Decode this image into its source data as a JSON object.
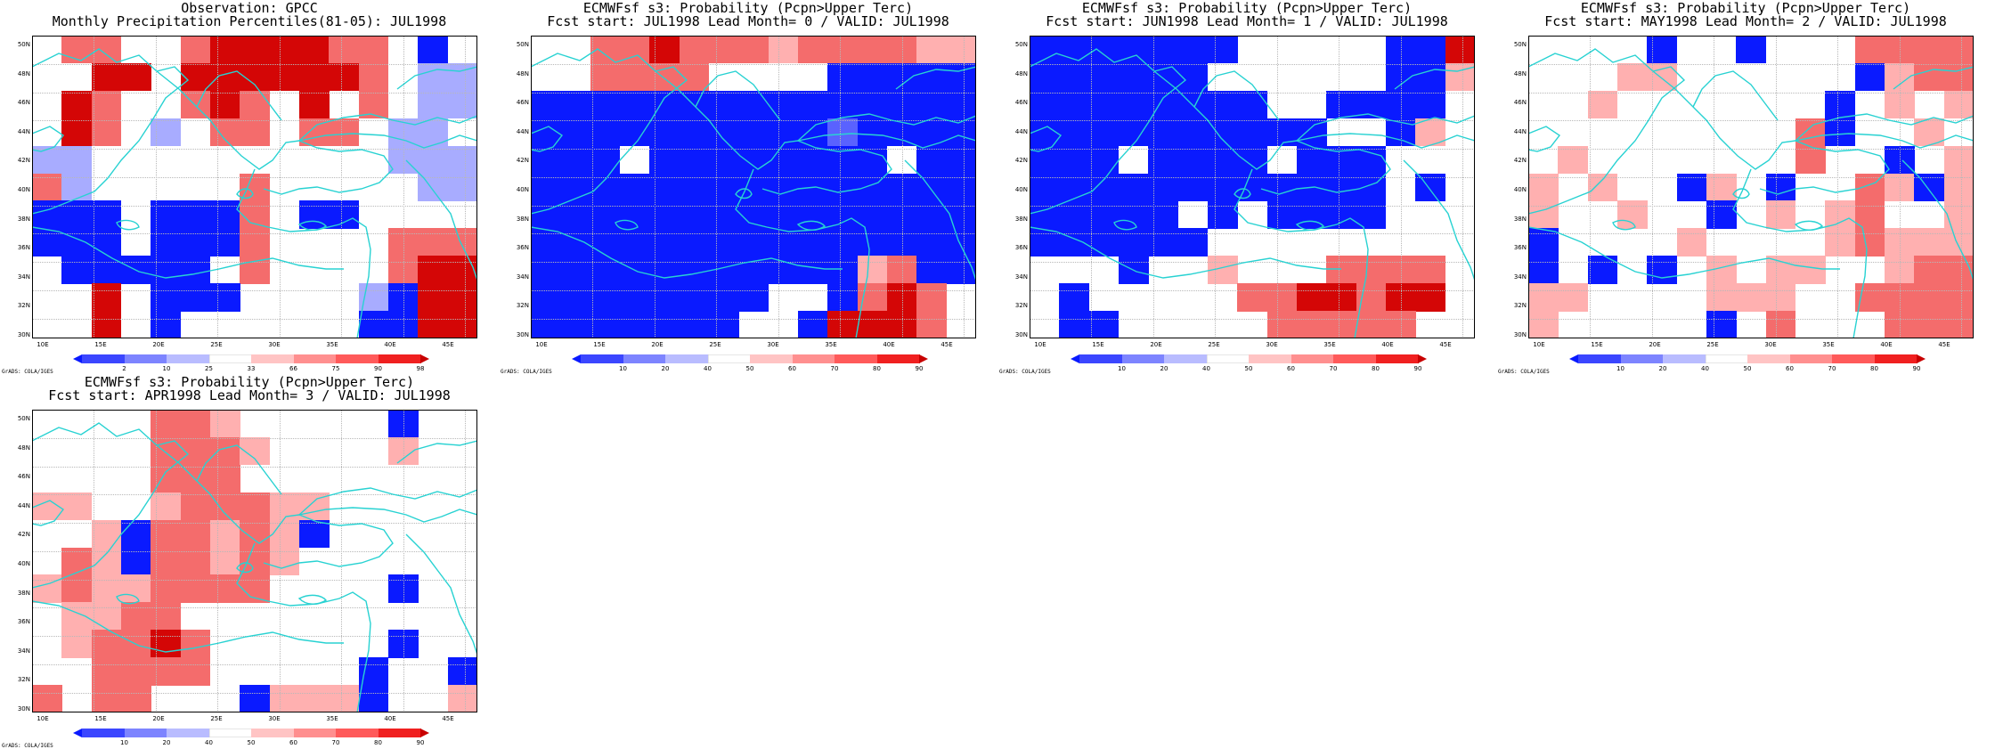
{
  "colors": {
    "blue": "#0a1aff",
    "blue_mid": "#5a62ff",
    "blue_light": "#a8acff",
    "red_light": "#ffb0b0",
    "red_mid": "#f46c6c",
    "red": "#ff2626",
    "red_dark": "#d40606",
    "coast": "#28d2d2"
  },
  "x_labels": [
    "10E",
    "15E",
    "20E",
    "25E",
    "30E",
    "35E",
    "40E",
    "45E"
  ],
  "y_labels": [
    "50N",
    "48N",
    "46N",
    "44N",
    "42N",
    "40N",
    "38N",
    "36N",
    "34N",
    "32N",
    "30N"
  ],
  "credit": "GrADS: COLA/IGES",
  "panels": [
    {
      "title1": "Observation: GPCC",
      "title2": "Monthly Precipitation Percentiles(81-05): JUL1998",
      "colorbar_labels": [
        "2",
        "10",
        "25",
        "33",
        "66",
        "75",
        "90",
        "98"
      ],
      "grid": [
        "W R R W W R D D D D R R W B W",
        "W W D D W D D D D D D R W L L",
        "W D R W W R D R W D W R W L L",
        "W D R W L W R R W R R W L L W",
        "L L W W W W W W W W W W L L L",
        "R L W W W W W R W W W W W L L",
        "B B B W B B B R W B B W W W W",
        "B B B W B B B R W W W W R R R",
        "W B B B B B W R W W W W R D D",
        "W W D W B B B W W W W L B D D",
        "W W D W B W W W W W W B B D D"
      ]
    },
    {
      "title1": "ECMWFsf s3: Probability (Pcpn>Upper Terc)",
      "title2": "Fcst start: JUL1998  Lead Month= 0 / VALID: JUL1998",
      "colorbar_labels": [
        "10",
        "20",
        "40",
        "50",
        "60",
        "70",
        "80",
        "90"
      ],
      "grid": [
        "W W R R D R R R L R R R R L L",
        "W W R R R R W W W W B B B B B",
        "B B B B B B B B B B B B B B B",
        "B B B B B B B B B B M B B B B",
        "B B B W B B B B B B B B W B B",
        "B B B B B B B B B B B B B B B",
        "B B B B B B B B B B B B B B B",
        "B B B B B B B B B B B B B B B",
        "B B B B B B B B B B B L R B B",
        "B B B B B B B B W W B R D R W",
        "B B B B B B B W W B D D D R W"
      ]
    },
    {
      "title1": "ECMWFsf s3: Probability (Pcpn>Upper Terc)",
      "title2": "Fcst start: JUN1998  Lead Month= 1 / VALID: JUL1998",
      "colorbar_labels": [
        "10",
        "20",
        "40",
        "50",
        "60",
        "70",
        "80",
        "90"
      ],
      "grid": [
        "B B B B B B B W W W W W B B D",
        "B B B B B B W W W W W W B B L",
        "B B B B B B B B W W B B B B W",
        "B B B B B B B B B B W W B L W",
        "B B B W B B B B W B B B W W W",
        "B B B B B B B B B B B B W B W",
        "B B B B B W B W B B B B W W W",
        "B B B B B B W W W W W W W W W",
        "W W W B W W L W W W R R R R W",
        "W B W W W W W R R D D R D D W",
        "W B B W W W W W R R R R R W W"
      ]
    },
    {
      "title1": "ECMWFsf s3: Probability (Pcpn>Upper Terc)",
      "title2": "Fcst start: MAY1998  Lead Month= 2 / VALID: JUL1998",
      "colorbar_labels": [
        "10",
        "20",
        "40",
        "50",
        "60",
        "70",
        "80",
        "90"
      ],
      "grid": [
        "W W W W B W W B W W W R R R R",
        "W W W L L W W W W W W B L R R",
        "W W L W W W W W W W B W L W L",
        "W W W W W W W W W R B W W L W",
        "W L W W W W W W W R W W B W L",
        "L W L W W B L W B W W R L B L",
        "L W W L W W B W L W L R W W L",
        "B W W W W L W W W W L R L L L",
        "B W B W B W L W L L W W L R R",
        "L L W W W W L L L W W R R R R",
        "L W W W W W B W R W W W R R R"
      ]
    },
    {
      "title1": "ECMWFsf s3: Probability (Pcpn>Upper Terc)",
      "title2": "Fcst start: APR1998  Lead Month= 3 / VALID: JUL1998",
      "colorbar_labels": [
        "10",
        "20",
        "40",
        "50",
        "60",
        "70",
        "80",
        "90"
      ],
      "grid": [
        "W W W W R R L W W W W W B W W",
        "W W W W R R R L W W W W L W W",
        "W W W W R R R W W W W W W W W",
        "L L W W L R R R L L W W W W W",
        "W W L B R R L R L B W W W W W",
        "W R L B R R L R L W W W W W W",
        "L R L L R R R R W W W W B W W",
        "W L L R R W W W W W W W W W W",
        "W L R R D R W W W W W W B W W",
        "W W R R R R W W W W W B W W B",
        "R W R R W W W B L L L B W W L"
      ]
    }
  ],
  "colorbar_colors": [
    "#0a1aff",
    "#3b46ff",
    "#7d84ff",
    "#b9bcff",
    "#ffffff",
    "#ffc4c4",
    "#ff8f8f",
    "#ff5a5a",
    "#f02020",
    "#c80000"
  ]
}
